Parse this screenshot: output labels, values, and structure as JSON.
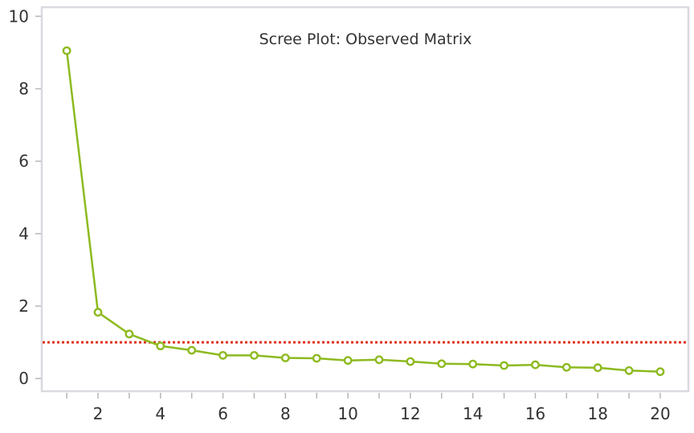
{
  "chart_data": {
    "type": "line",
    "title": "Scree Plot: Observed Matrix",
    "xlabel": "",
    "ylabel": "",
    "x": [
      1,
      2,
      3,
      4,
      5,
      6,
      7,
      8,
      9,
      10,
      11,
      12,
      13,
      14,
      15,
      16,
      17,
      18,
      19,
      20
    ],
    "series": [
      {
        "values": [
          9.05,
          1.83,
          1.23,
          0.9,
          0.78,
          0.64,
          0.64,
          0.57,
          0.56,
          0.5,
          0.52,
          0.47,
          0.41,
          0.4,
          0.36,
          0.38,
          0.31,
          0.3,
          0.22,
          0.19
        ],
        "color": "#8dba1f",
        "marker": "open-circle"
      }
    ],
    "reference_line": {
      "y": 1.0,
      "style": "dotted",
      "color": "#e0301e"
    },
    "xlim": [
      0.2,
      20.9
    ],
    "ylim": [
      -0.35,
      10.25
    ],
    "x_ticks": [
      2,
      4,
      6,
      8,
      10,
      12,
      14,
      16,
      18,
      20
    ],
    "x_minor_ticks": [
      1,
      2,
      3,
      4,
      5,
      6,
      7,
      8,
      9,
      10,
      11,
      12,
      13,
      14,
      15,
      16,
      17,
      18,
      19,
      20
    ],
    "y_ticks": [
      0,
      2,
      4,
      6,
      8,
      10
    ],
    "grid": false,
    "frame_color": "#d9d9df",
    "legend": "none"
  }
}
